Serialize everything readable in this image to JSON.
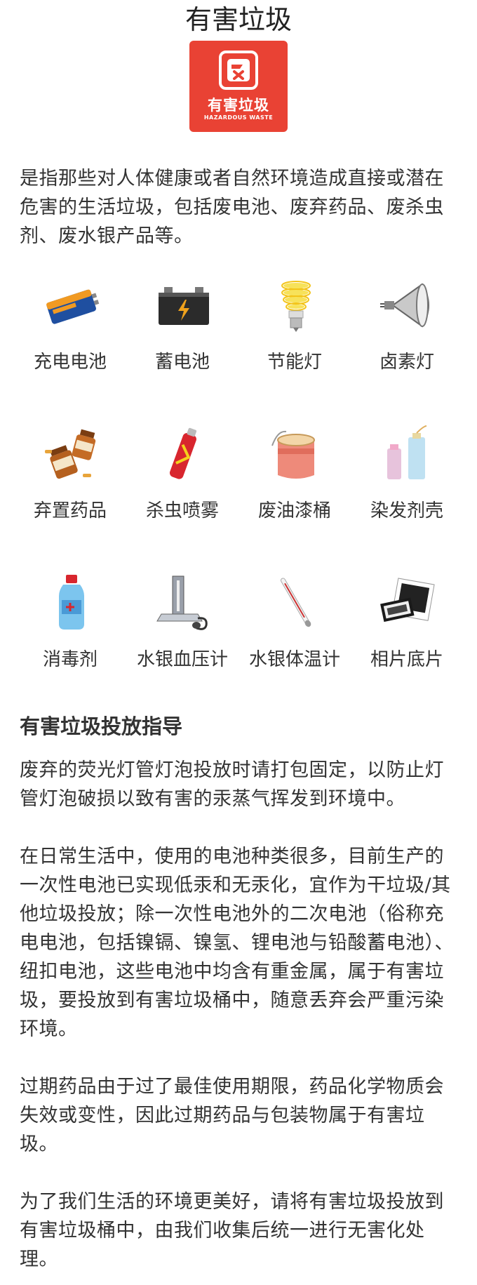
{
  "header": {
    "title": "有害垃圾",
    "logo_text": "有害垃圾",
    "logo_subtext": "HAZARDOUS WASTE",
    "accent_color": "#e94234"
  },
  "intro": "是指那些对人体健康或者自然环境造成直接或潜在危害的生活垃圾，包括废电池、废弃药品、废杀虫剂、废水银产品等。",
  "items": [
    {
      "label": "充电电池",
      "icon": "rechargeable-battery-icon"
    },
    {
      "label": "蓄电池",
      "icon": "storage-battery-icon"
    },
    {
      "label": "节能灯",
      "icon": "energy-saving-lamp-icon"
    },
    {
      "label": "卤素灯",
      "icon": "halogen-lamp-icon"
    },
    {
      "label": "弃置药品",
      "icon": "medicine-bottle-icon"
    },
    {
      "label": "杀虫喷雾",
      "icon": "insecticide-spray-icon"
    },
    {
      "label": "废油漆桶",
      "icon": "paint-bucket-icon"
    },
    {
      "label": "染发剂壳",
      "icon": "hair-dye-tube-icon"
    },
    {
      "label": "消毒剂",
      "icon": "disinfectant-bottle-icon"
    },
    {
      "label": "水银血压计",
      "icon": "mercury-sphygmomanometer-icon"
    },
    {
      "label": "水银体温计",
      "icon": "mercury-thermometer-icon"
    },
    {
      "label": "相片底片",
      "icon": "photo-film-icon"
    }
  ],
  "guide": {
    "title": "有害垃圾投放指导",
    "paragraphs": [
      "废弃的荧光灯管灯泡投放时请打包固定，以防止灯管灯泡破损以致有害的汞蒸气挥发到环境中。",
      "在日常生活中，使用的电池种类很多，目前生产的一次性电池已实现低汞和无汞化，宜作为干垃圾/其他垃圾投放；除一次性电池外的二次电池（俗称充电电池，包括镍镉、镍氢、锂电池与铅酸蓄电池）、纽扣电池，这些电池中均含有重金属，属于有害垃圾，要投放到有害垃圾桶中，随意丢弃会严重污染环境。",
      "过期药品由于过了最佳使用期限，药品化学物质会失效或变性，因此过期药品与包装物属于有害垃圾。",
      "为了我们生活的环境更美好，请将有害垃圾投放到有害垃圾桶中，由我们收集后统一进行无害化处理。"
    ]
  }
}
